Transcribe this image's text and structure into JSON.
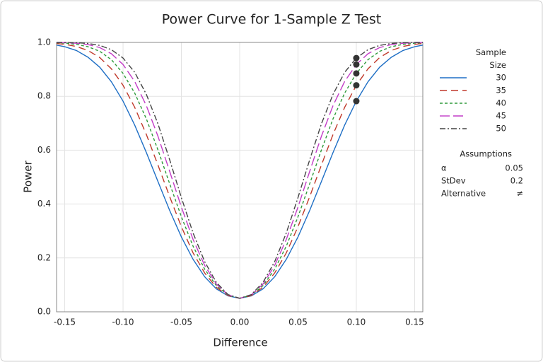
{
  "chart_data": {
    "type": "line",
    "title": "Power Curve for 1-Sample Z Test",
    "x_label": "Difference",
    "y_label": "Power",
    "x": [
      -0.157,
      -0.15,
      -0.14,
      -0.13,
      -0.12,
      -0.11,
      -0.1,
      -0.09,
      -0.08,
      -0.07,
      -0.06,
      -0.05,
      -0.04,
      -0.03,
      -0.02,
      -0.01,
      0,
      0.01,
      0.02,
      0.03,
      0.04,
      0.05,
      0.06,
      0.07,
      0.08,
      0.09,
      0.1,
      0.11,
      0.12,
      0.13,
      0.14,
      0.15,
      0.157
    ],
    "legend_title": "Sample Size",
    "series": [
      {
        "name": "30",
        "color": "#1f6fc5",
        "values": [
          0.99,
          0.984,
          0.97,
          0.945,
          0.908,
          0.854,
          0.782,
          0.693,
          0.591,
          0.483,
          0.376,
          0.278,
          0.195,
          0.13,
          0.085,
          0.059,
          0.05,
          0.059,
          0.085,
          0.13,
          0.195,
          0.278,
          0.376,
          0.483,
          0.591,
          0.693,
          0.782,
          0.854,
          0.908,
          0.945,
          0.97,
          0.984,
          0.99
        ]
      },
      {
        "name": "35",
        "color": "#c0392b",
        "dash": "10 6",
        "values": [
          0.996,
          0.993,
          0.985,
          0.97,
          0.944,
          0.902,
          0.841,
          0.759,
          0.658,
          0.544,
          0.427,
          0.316,
          0.219,
          0.144,
          0.091,
          0.06,
          0.05,
          0.06,
          0.091,
          0.144,
          0.219,
          0.316,
          0.427,
          0.544,
          0.658,
          0.759,
          0.841,
          0.902,
          0.944,
          0.97,
          0.985,
          0.993,
          0.996
        ]
      },
      {
        "name": "40",
        "color": "#2e9a3a",
        "dash": "4 3",
        "values": [
          0.999,
          0.997,
          0.993,
          0.984,
          0.967,
          0.936,
          0.885,
          0.812,
          0.716,
          0.6,
          0.475,
          0.353,
          0.244,
          0.158,
          0.097,
          0.062,
          0.05,
          0.062,
          0.097,
          0.158,
          0.244,
          0.353,
          0.475,
          0.6,
          0.716,
          0.812,
          0.885,
          0.936,
          0.967,
          0.984,
          0.993,
          0.997,
          0.999
        ]
      },
      {
        "name": "45",
        "color": "#c23cc7",
        "dash": "14 5",
        "values": [
          1.0,
          0.999,
          0.997,
          0.992,
          0.981,
          0.958,
          0.918,
          0.855,
          0.765,
          0.651,
          0.521,
          0.389,
          0.269,
          0.172,
          0.103,
          0.063,
          0.05,
          0.063,
          0.103,
          0.172,
          0.269,
          0.389,
          0.521,
          0.651,
          0.765,
          0.855,
          0.918,
          0.958,
          0.981,
          0.992,
          0.997,
          0.999,
          1.0
        ]
      },
      {
        "name": "50",
        "color": "#444444",
        "dash": "8 3 2 3",
        "values": [
          1.0,
          1.0,
          0.999,
          0.996,
          0.989,
          0.973,
          0.942,
          0.889,
          0.807,
          0.697,
          0.564,
          0.424,
          0.293,
          0.186,
          0.109,
          0.064,
          0.05,
          0.064,
          0.109,
          0.186,
          0.293,
          0.424,
          0.564,
          0.697,
          0.807,
          0.889,
          0.942,
          0.973,
          0.989,
          0.996,
          0.999,
          1.0,
          1.0
        ]
      }
    ],
    "target_difference": 0.1,
    "xlim": [
      -0.157,
      0.157
    ],
    "ylim": [
      0,
      1
    ],
    "xticks": [
      -0.15,
      {
        "value": -0.1,
        "label": "-0.10"
      },
      -0.05,
      {
        "value": 0,
        "label": "0.00"
      },
      0.05,
      {
        "value": 0.1,
        "label": "0.10"
      },
      0.15
    ],
    "yticks": [
      {
        "value": 0,
        "label": "0.0"
      },
      0.2,
      0.4,
      0.6,
      0.8,
      {
        "value": 1,
        "label": "1.0"
      }
    ],
    "grid": true,
    "assumptions": {
      "title": "Assumptions",
      "rows": [
        [
          "α",
          "0.05"
        ],
        [
          "StDev",
          "0.2"
        ],
        [
          "Alternative",
          "≠"
        ]
      ]
    }
  }
}
